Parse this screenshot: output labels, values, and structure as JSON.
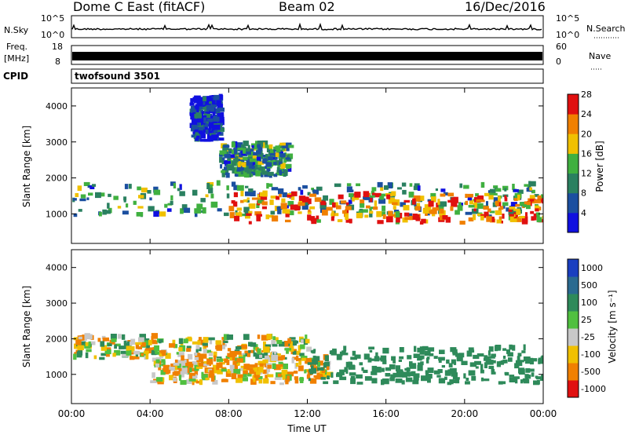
{
  "header": {
    "title": "Dome C East (fitACF)",
    "beam": "Beam 02",
    "date": "16/Dec/2016"
  },
  "strips": {
    "nsky_label": "N.Sky",
    "nsky_ticks": [
      "10^5",
      "10^0"
    ],
    "nsearch_label": "N.Search",
    "nsearch_ticks": [
      "10^5",
      "10^0"
    ],
    "freq_label": "Freq.",
    "freq_unit": "[MHz]",
    "freq_ticks": [
      "18",
      "8"
    ],
    "nave_label": "Nave",
    "nave_ticks": [
      "60",
      "0"
    ],
    "cpid_label": "CPID",
    "cpid_value": "twofsound 3501"
  },
  "chart_data": [
    {
      "type": "heatmap",
      "title": "",
      "ylabel": "Slant Range [km]",
      "xlabel": "",
      "ylim": [
        180,
        4500
      ],
      "xlim_hours": [
        0,
        24
      ],
      "x_ticks": [
        "00:00",
        "04:00",
        "08:00",
        "12:00",
        "16:00",
        "20:00",
        "00:00"
      ],
      "y_ticks": [
        1000,
        2000,
        3000,
        4000
      ],
      "colorbar": {
        "label": "Power [dB]",
        "ticks": [
          "4",
          "8",
          "12",
          "16",
          "20",
          "24",
          "28"
        ],
        "colors": [
          "#1010e0",
          "#1b4fa0",
          "#2a8060",
          "#40b040",
          "#f0c000",
          "#f08000",
          "#e01010"
        ]
      },
      "echo_regions": [
        {
          "t_start_h": 0.0,
          "t_end_h": 24.0,
          "range_min_km": 900,
          "range_max_km": 1800,
          "level_db": 12
        },
        {
          "t_start_h": 8.0,
          "t_end_h": 24.0,
          "range_min_km": 700,
          "range_max_km": 1500,
          "level_db": 24
        },
        {
          "t_start_h": 7.5,
          "t_end_h": 11.0,
          "range_min_km": 2000,
          "range_max_km": 2900,
          "level_db": 12
        },
        {
          "t_start_h": 6.0,
          "t_end_h": 7.5,
          "range_min_km": 3000,
          "range_max_km": 4200,
          "level_db": 6
        }
      ]
    },
    {
      "type": "heatmap",
      "title": "",
      "ylabel": "Slant Range [km]",
      "xlabel": "Time UT",
      "ylim": [
        180,
        4500
      ],
      "xlim_hours": [
        0,
        24
      ],
      "x_ticks": [
        "00:00",
        "04:00",
        "08:00",
        "12:00",
        "16:00",
        "20:00",
        "00:00"
      ],
      "y_ticks": [
        1000,
        2000,
        3000,
        4000
      ],
      "colorbar": {
        "label": "Velocity [m s⁻¹]",
        "ticks": [
          "1000",
          "500",
          "100",
          "25",
          "-25",
          "-100",
          "-500",
          "-1000"
        ],
        "colors": [
          "#1a3fc0",
          "#2a6a90",
          "#2e8a5a",
          "#50c040",
          "#c8c8c8",
          "#f0c000",
          "#f08000",
          "#e01010"
        ]
      },
      "echo_regions": [
        {
          "t_start_h": 0.0,
          "t_end_h": 12.0,
          "range_min_km": 1400,
          "range_max_km": 2000,
          "velocity_ms": 0
        },
        {
          "t_start_h": 4.0,
          "t_end_h": 13.0,
          "range_min_km": 700,
          "range_max_km": 1400,
          "velocity_ms": -100
        },
        {
          "t_start_h": 12.0,
          "t_end_h": 24.0,
          "range_min_km": 700,
          "range_max_km": 1700,
          "velocity_ms": 300
        }
      ]
    }
  ],
  "colors": {
    "axis": "#000000",
    "background": "#ffffff",
    "strip_fill": "#000000"
  }
}
